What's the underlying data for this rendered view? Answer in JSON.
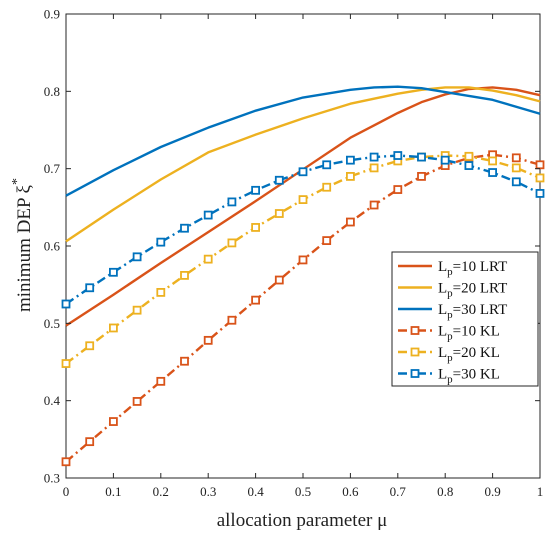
{
  "chart_data": {
    "type": "line",
    "xlabel": "allocation parameter μ",
    "ylabel": "minimum DEP ξ",
    "ylabel_superscript": "*",
    "xlim": [
      0,
      1
    ],
    "ylim": [
      0.3,
      0.9
    ],
    "xticks": [
      0,
      0.1,
      0.2,
      0.3,
      0.4,
      0.5,
      0.6,
      0.7,
      0.8,
      0.9,
      1
    ],
    "yticks": [
      0.3,
      0.4,
      0.5,
      0.6,
      0.7,
      0.8,
      0.9
    ],
    "grid": false,
    "legend_position": "right-middle",
    "series": [
      {
        "label_main": "L",
        "label_sub": "p",
        "label_rest": "=10 LRT",
        "color": "#D95319",
        "style": "solid",
        "marker": "none",
        "x": [
          0,
          0.1,
          0.2,
          0.3,
          0.4,
          0.5,
          0.6,
          0.7,
          0.75,
          0.8,
          0.85,
          0.9,
          0.95,
          1
        ],
        "y": [
          0.497,
          0.537,
          0.578,
          0.618,
          0.658,
          0.699,
          0.74,
          0.772,
          0.786,
          0.796,
          0.803,
          0.805,
          0.802,
          0.795
        ]
      },
      {
        "label_main": "L",
        "label_sub": "p",
        "label_rest": "=20 LRT",
        "color": "#EDB120",
        "style": "solid",
        "marker": "none",
        "x": [
          0,
          0.1,
          0.2,
          0.3,
          0.4,
          0.5,
          0.6,
          0.7,
          0.75,
          0.8,
          0.85,
          0.9,
          0.95,
          1
        ],
        "y": [
          0.606,
          0.647,
          0.686,
          0.721,
          0.744,
          0.765,
          0.784,
          0.797,
          0.802,
          0.805,
          0.805,
          0.801,
          0.795,
          0.787
        ]
      },
      {
        "label_main": "L",
        "label_sub": "p",
        "label_rest": "=30 LRT",
        "color": "#0072BD",
        "style": "solid",
        "marker": "none",
        "x": [
          0,
          0.1,
          0.2,
          0.3,
          0.4,
          0.5,
          0.6,
          0.65,
          0.7,
          0.75,
          0.8,
          0.9,
          1
        ],
        "y": [
          0.665,
          0.698,
          0.728,
          0.753,
          0.775,
          0.792,
          0.802,
          0.805,
          0.806,
          0.804,
          0.799,
          0.789,
          0.771
        ]
      },
      {
        "label_main": "L",
        "label_sub": "p",
        "label_rest": "=10 KL",
        "color": "#D95319",
        "style": "dashdot",
        "marker": "square",
        "x": [
          0,
          0.05,
          0.1,
          0.15,
          0.2,
          0.25,
          0.3,
          0.35,
          0.4,
          0.45,
          0.5,
          0.55,
          0.6,
          0.65,
          0.7,
          0.75,
          0.8,
          0.85,
          0.9,
          0.95,
          1
        ],
        "y": [
          0.321,
          0.347,
          0.373,
          0.399,
          0.425,
          0.451,
          0.478,
          0.504,
          0.53,
          0.556,
          0.582,
          0.607,
          0.631,
          0.653,
          0.673,
          0.69,
          0.704,
          0.714,
          0.718,
          0.714,
          0.705
        ]
      },
      {
        "label_main": "L",
        "label_sub": "p",
        "label_rest": "=20 KL",
        "color": "#EDB120",
        "style": "dashdot",
        "marker": "square",
        "x": [
          0,
          0.05,
          0.1,
          0.15,
          0.2,
          0.25,
          0.3,
          0.35,
          0.4,
          0.45,
          0.5,
          0.55,
          0.6,
          0.65,
          0.7,
          0.75,
          0.8,
          0.85,
          0.9,
          0.95,
          1
        ],
        "y": [
          0.448,
          0.471,
          0.494,
          0.517,
          0.54,
          0.562,
          0.583,
          0.604,
          0.624,
          0.642,
          0.66,
          0.676,
          0.69,
          0.701,
          0.71,
          0.715,
          0.717,
          0.716,
          0.71,
          0.701,
          0.688
        ]
      },
      {
        "label_main": "L",
        "label_sub": "p",
        "label_rest": "=30 KL",
        "color": "#0072BD",
        "style": "dashdot",
        "marker": "square",
        "x": [
          0,
          0.05,
          0.1,
          0.15,
          0.2,
          0.25,
          0.3,
          0.35,
          0.4,
          0.45,
          0.5,
          0.55,
          0.6,
          0.65,
          0.7,
          0.75,
          0.8,
          0.85,
          0.9,
          0.95,
          1
        ],
        "y": [
          0.525,
          0.546,
          0.566,
          0.586,
          0.605,
          0.623,
          0.64,
          0.657,
          0.672,
          0.685,
          0.696,
          0.705,
          0.711,
          0.715,
          0.717,
          0.715,
          0.711,
          0.704,
          0.695,
          0.683,
          0.668
        ]
      }
    ]
  }
}
